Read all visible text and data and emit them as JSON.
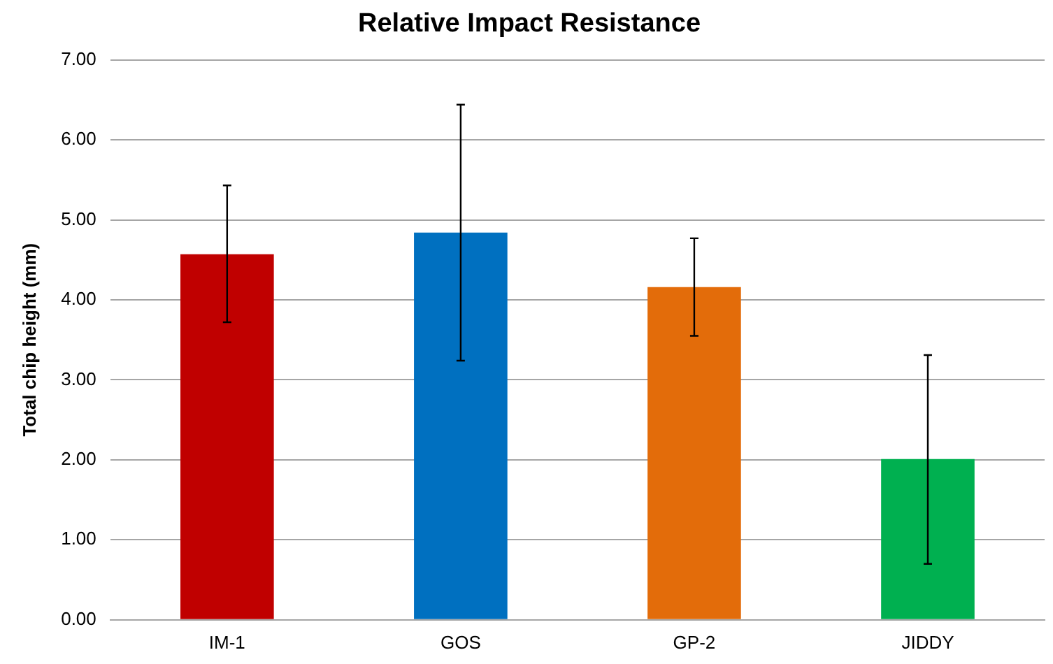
{
  "chart_data": {
    "type": "bar",
    "title": "Relative Impact Resistance",
    "ylabel": "Total chip height (mm)",
    "categories": [
      "IM-1",
      "GOS",
      "GP-2",
      "JIDDY"
    ],
    "values": [
      4.57,
      4.84,
      4.16,
      2.01
    ],
    "colors": [
      "#c00000",
      "#0070c0",
      "#e36c0a",
      "#00b050"
    ],
    "errors": [
      [
        3.72,
        5.43
      ],
      [
        3.24,
        6.44
      ],
      [
        3.55,
        4.77
      ],
      [
        0.7,
        3.31
      ]
    ],
    "ylim": [
      0,
      7
    ],
    "yticks": [
      {
        "value": 0,
        "label": "0.00"
      },
      {
        "value": 1,
        "label": "1.00"
      },
      {
        "value": 2,
        "label": "2.00"
      },
      {
        "value": 3,
        "label": "3.00"
      },
      {
        "value": 4,
        "label": "4.00"
      },
      {
        "value": 5,
        "label": "5.00"
      },
      {
        "value": 6,
        "label": "6.00"
      },
      {
        "value": 7,
        "label": "7.00"
      }
    ],
    "grid": "y",
    "legend": false
  }
}
